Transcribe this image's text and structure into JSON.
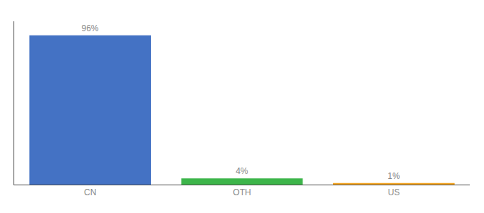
{
  "chart_data": {
    "type": "bar",
    "categories": [
      "CN",
      "OTH",
      "US"
    ],
    "values": [
      96,
      4,
      1
    ],
    "value_labels": [
      "96%",
      "4%",
      "1%"
    ],
    "colors": [
      "#4472c4",
      "#3db54a",
      "#f5a623"
    ],
    "ylim": [
      0,
      105
    ],
    "grid": false,
    "data_labels": true,
    "tick_labels": "x"
  }
}
